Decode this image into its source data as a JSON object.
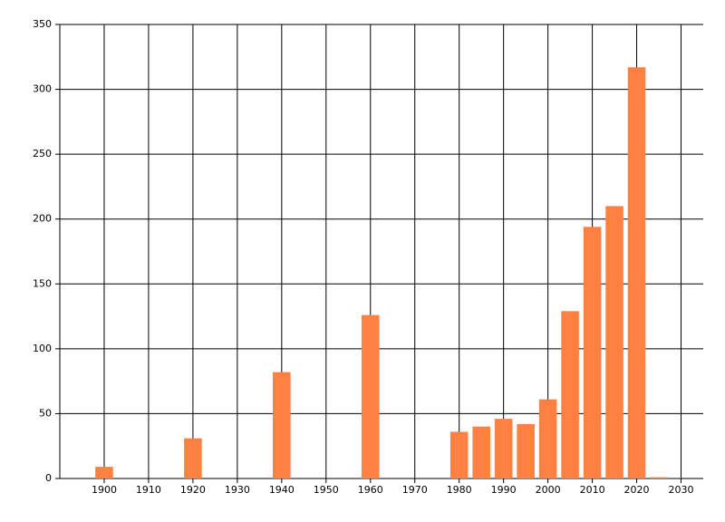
{
  "chart_data": {
    "type": "bar",
    "x": [
      1900,
      1920,
      1940,
      1960,
      1980,
      1985,
      1990,
      1995,
      2000,
      2005,
      2010,
      2015,
      2020,
      2025
    ],
    "values": [
      9,
      31,
      82,
      126,
      36,
      40,
      46,
      42,
      61,
      129,
      194,
      210,
      317,
      1
    ],
    "color": "#ff8040",
    "xlim": [
      1890,
      2035
    ],
    "xticks": [
      1900,
      1910,
      1920,
      1930,
      1940,
      1950,
      1960,
      1970,
      1980,
      1990,
      2000,
      2010,
      2020,
      2030
    ],
    "ylim": [
      0,
      350
    ],
    "yticks": [
      0,
      50,
      100,
      150,
      200,
      250,
      300,
      350
    ],
    "grid": true
  }
}
